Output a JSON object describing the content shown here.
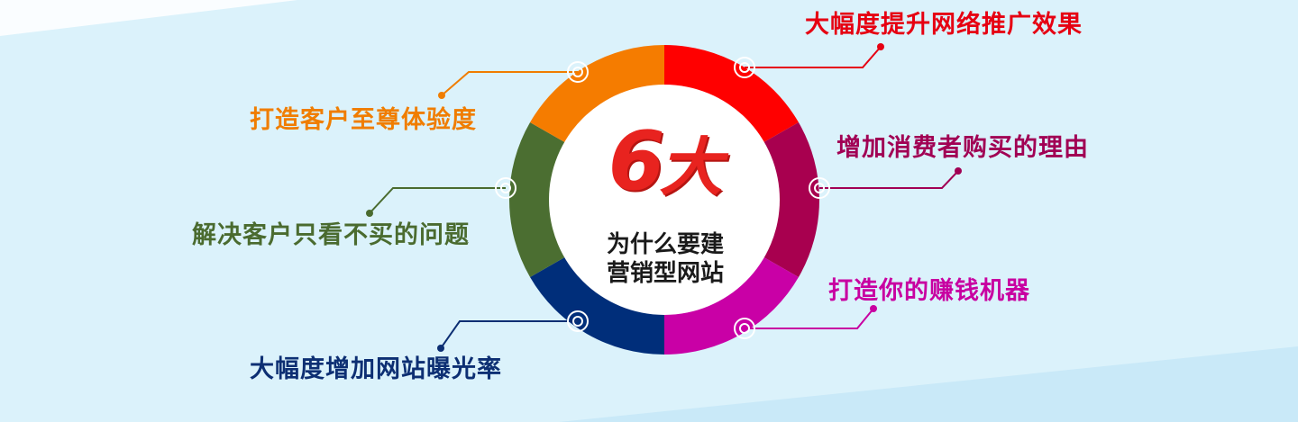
{
  "center": {
    "number": "6",
    "big": "大",
    "line1": "为什么要建",
    "line2": "营销型网站"
  },
  "items": [
    {
      "label": "大幅度提升网络推广效果",
      "color": "#e60012",
      "icon": "circle-node-icon"
    },
    {
      "label": "增加消费者购买的理由",
      "color": "#a10054",
      "icon": "circle-node-icon"
    },
    {
      "label": "打造你的赚钱机器",
      "color": "#c800a1",
      "icon": "circle-node-icon"
    },
    {
      "label": "大幅度增加网站曝光率",
      "color": "#0d2f73",
      "icon": "circle-node-icon"
    },
    {
      "label": "解决客户只看不买的问题",
      "color": "#4a6b2f",
      "icon": "circle-node-icon"
    },
    {
      "label": "打造客户至尊体验度",
      "color": "#f07d00",
      "icon": "circle-node-icon"
    }
  ]
}
